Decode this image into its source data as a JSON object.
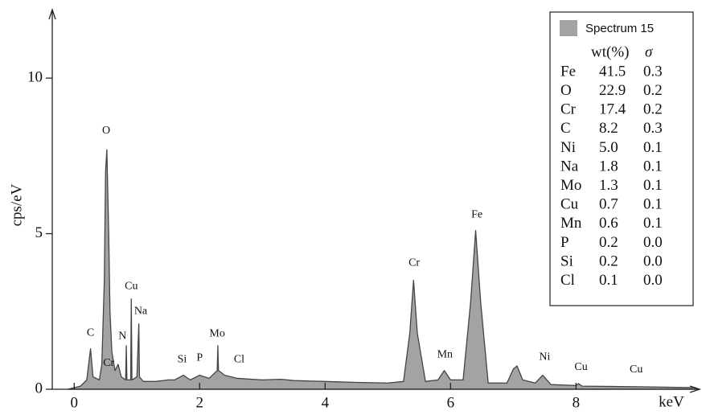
{
  "chart_data": {
    "type": "area",
    "xlabel": "keV",
    "ylabel": "cps/eV",
    "xlim": [
      -0.35,
      9.97
    ],
    "ylim": [
      0,
      12.2
    ],
    "xticks": [
      0,
      2,
      4,
      6,
      8
    ],
    "yticks": [
      0,
      5,
      10
    ],
    "x": [
      -0.1,
      0.1,
      0.2,
      0.26,
      0.3,
      0.4,
      0.44,
      0.48,
      0.5,
      0.52,
      0.55,
      0.57,
      0.6,
      0.65,
      0.7,
      0.75,
      0.82,
      0.83,
      0.84,
      0.9,
      0.91,
      0.92,
      1.0,
      1.03,
      1.04,
      1.1,
      1.3,
      1.5,
      1.6,
      1.74,
      1.85,
      2.0,
      2.15,
      2.28,
      2.29,
      2.3,
      2.4,
      2.6,
      3.0,
      3.3,
      3.5,
      4.0,
      4.5,
      5.0,
      5.25,
      5.35,
      5.41,
      5.47,
      5.6,
      5.8,
      5.9,
      6.0,
      6.2,
      6.32,
      6.4,
      6.48,
      6.6,
      6.9,
      7.0,
      7.06,
      7.15,
      7.35,
      7.47,
      7.6,
      8.0,
      8.04,
      8.1,
      9.0,
      9.9
    ],
    "series": [
      {
        "name": "Spectrum 15",
        "color": "#a3a3a3",
        "values": [
          0,
          0.1,
          0.3,
          1.3,
          0.4,
          0.3,
          0.8,
          3.5,
          7.0,
          7.7,
          5.0,
          2.5,
          1.2,
          0.6,
          0.8,
          0.4,
          0.3,
          1.4,
          0.3,
          0.3,
          2.9,
          0.3,
          0.4,
          2.1,
          0.4,
          0.25,
          0.25,
          0.3,
          0.3,
          0.45,
          0.3,
          0.45,
          0.35,
          0.6,
          1.4,
          0.6,
          0.45,
          0.35,
          0.3,
          0.32,
          0.28,
          0.25,
          0.22,
          0.2,
          0.25,
          1.8,
          3.5,
          1.8,
          0.25,
          0.3,
          0.6,
          0.3,
          0.3,
          2.8,
          5.1,
          2.8,
          0.2,
          0.2,
          0.65,
          0.75,
          0.3,
          0.2,
          0.45,
          0.15,
          0.12,
          0.18,
          0.1,
          0.08,
          0.05
        ]
      }
    ],
    "annotations": [
      {
        "text": "O",
        "x": 0.51,
        "y": 8.3
      },
      {
        "text": "C",
        "x": 0.26,
        "y": 1.8
      },
      {
        "text": "Cr",
        "x": 0.55,
        "y": 0.83
      },
      {
        "text": "N",
        "x": 0.77,
        "y": 1.7
      },
      {
        "text": "Cu",
        "x": 0.91,
        "y": 3.3
      },
      {
        "text": "Na",
        "x": 1.06,
        "y": 2.5
      },
      {
        "text": "Si",
        "x": 1.72,
        "y": 0.95
      },
      {
        "text": "P",
        "x": 2.0,
        "y": 1.0
      },
      {
        "text": "Mo",
        "x": 2.28,
        "y": 1.78
      },
      {
        "text": "Cl",
        "x": 2.63,
        "y": 0.95
      },
      {
        "text": "Cr",
        "x": 5.42,
        "y": 4.05
      },
      {
        "text": "Mn",
        "x": 5.91,
        "y": 1.1
      },
      {
        "text": "Fe",
        "x": 6.42,
        "y": 5.6
      },
      {
        "text": "Ni",
        "x": 7.5,
        "y": 1.03
      },
      {
        "text": "Cu",
        "x": 8.08,
        "y": 0.7
      },
      {
        "text": "Cu",
        "x": 8.96,
        "y": 0.62
      }
    ],
    "table": {
      "header": [
        "wt(%)",
        "σ"
      ],
      "rows": [
        [
          "Fe",
          "41.5",
          "0.3"
        ],
        [
          "O",
          "22.9",
          "0.2"
        ],
        [
          "Cr",
          "17.4",
          "0.2"
        ],
        [
          "C",
          "8.2",
          "0.3"
        ],
        [
          "Ni",
          "5.0",
          "0.1"
        ],
        [
          "Na",
          "1.8",
          "0.1"
        ],
        [
          "Mo",
          "1.3",
          "0.1"
        ],
        [
          "Cu",
          "0.7",
          "0.1"
        ],
        [
          "Mn",
          "0.6",
          "0.1"
        ],
        [
          "P",
          "0.2",
          "0.0"
        ],
        [
          "Si",
          "0.2",
          "0.0"
        ],
        [
          "Cl",
          "0.1",
          "0.0"
        ]
      ]
    }
  }
}
